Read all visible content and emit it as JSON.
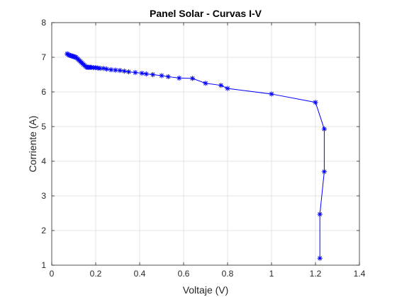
{
  "chart_data": {
    "type": "line",
    "title": "Panel Solar - Curvas I-V",
    "xlabel": "Voltaje (V)",
    "ylabel": "Corriente (A)",
    "xlim": [
      0,
      1.4
    ],
    "ylim": [
      1,
      8
    ],
    "xticks": [
      "0",
      "0.2",
      "0.4",
      "0.6",
      "0.8",
      "1",
      "1.2",
      "1.4"
    ],
    "yticks": [
      "1",
      "2",
      "3",
      "4",
      "5",
      "6",
      "7",
      "8"
    ],
    "grid": true,
    "marker": "asterisk",
    "line_color": "#0000ff",
    "series": [
      {
        "x": [
          0.07,
          0.075,
          0.08,
          0.085,
          0.09,
          0.095,
          0.1,
          0.105,
          0.11,
          0.115,
          0.12,
          0.125,
          0.13,
          0.135,
          0.14,
          0.145,
          0.15,
          0.155,
          0.16,
          0.165,
          0.17,
          0.175,
          0.18,
          0.19,
          0.2,
          0.21,
          0.22,
          0.235,
          0.25,
          0.27,
          0.29,
          0.31,
          0.33,
          0.35,
          0.38,
          0.41,
          0.43,
          0.46,
          0.5,
          0.53,
          0.58,
          0.64,
          0.7,
          0.77,
          0.8,
          1.0,
          1.2,
          1.24,
          1.24,
          1.22,
          1.22
        ],
        "y": [
          7.1,
          7.08,
          7.06,
          7.05,
          7.04,
          7.03,
          7.02,
          7.01,
          7.0,
          6.97,
          6.94,
          6.91,
          6.88,
          6.85,
          6.82,
          6.79,
          6.76,
          6.73,
          6.71,
          6.71,
          6.71,
          6.71,
          6.71,
          6.7,
          6.7,
          6.69,
          6.68,
          6.68,
          6.66,
          6.64,
          6.63,
          6.62,
          6.6,
          6.58,
          6.56,
          6.54,
          6.52,
          6.5,
          6.47,
          6.44,
          6.4,
          6.39,
          6.25,
          6.19,
          6.1,
          5.94,
          5.7,
          4.93,
          3.7,
          2.47,
          1.2
        ]
      }
    ]
  }
}
